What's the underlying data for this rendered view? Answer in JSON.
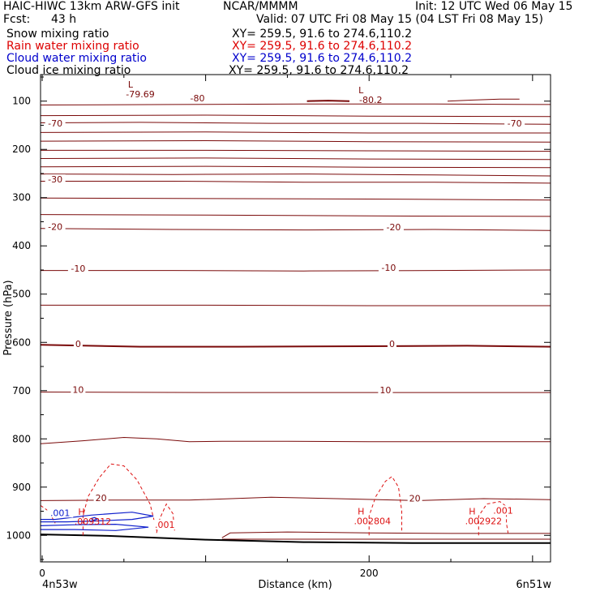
{
  "header": {
    "model": "HAIC-HIWC 13km ARW-GFS init",
    "center": "NCAR/MMMM",
    "init": "Init: 12 UTC Wed 06 May 15",
    "fcst_label": "Fcst:",
    "fcst_value": "43 h",
    "valid": "Valid: 07 UTC Fri 08 May 15 (04 LST Fri 08 May 15)",
    "fields": [
      {
        "name": "Snow mixing ratio",
        "xy": "XY= 259.5, 91.6 to 274.6,110.2",
        "color": "#000000"
      },
      {
        "name": "Rain water mixing ratio",
        "xy": "XY= 259.5, 91.6 to 274.6,110.2",
        "color": "#dd0000"
      },
      {
        "name": "Cloud water mixing ratio",
        "xy": "XY= 259.5, 91.6 to 274.6,110.2",
        "color": "#0000cc"
      },
      {
        "name": "Cloud ice mixing ratio",
        "xy": "XY= 259.5, 91.6 to 274.6,110.2",
        "color": "#000000"
      }
    ]
  },
  "chart_data": {
    "type": "cross-section contour",
    "ylabel": "Pressure (hPa)",
    "xlabel": "Distance (km)",
    "yticks": [
      100,
      200,
      300,
      400,
      500,
      600,
      700,
      800,
      900,
      1000
    ],
    "xticks": [
      0,
      200
    ],
    "xlim": [
      -1,
      311
    ],
    "ylim_top": 45,
    "ylim_bottom": 1055,
    "start_point": "4n53w",
    "end_point": "6n51w",
    "temperature_contours_C": [
      -80,
      -70,
      -30,
      -20,
      -10,
      0,
      10,
      20
    ],
    "temperature_contour_labels": [
      {
        "text": "-80",
        "x": 95,
        "p": 99
      },
      {
        "text": "-70",
        "x": 8,
        "p": 151
      },
      {
        "text": "-70",
        "x": 289,
        "p": 151
      },
      {
        "text": "-30",
        "x": 8,
        "p": 267
      },
      {
        "text": "-20",
        "x": 8,
        "p": 365
      },
      {
        "text": "-20",
        "x": 215,
        "p": 366
      },
      {
        "text": "-10",
        "x": 22,
        "p": 452
      },
      {
        "text": "-10",
        "x": 212,
        "p": 450
      },
      {
        "text": "0",
        "x": 22,
        "p": 608
      },
      {
        "text": "0",
        "x": 214,
        "p": 608
      },
      {
        "text": "10",
        "x": 22,
        "p": 703
      },
      {
        "text": "10",
        "x": 210,
        "p": 704
      },
      {
        "text": "20",
        "x": 36,
        "p": 927
      },
      {
        "text": "20",
        "x": 228,
        "p": 928
      }
    ],
    "extrema": [
      {
        "kind": "L",
        "value": "-79.69",
        "x": 60,
        "p": 87
      },
      {
        "kind": "L",
        "value": "-80.2",
        "x": 201,
        "p": 99
      },
      {
        "kind": "H",
        "value": ".009312",
        "x": 31,
        "p": 973
      },
      {
        "kind": "H",
        "value": ".002804",
        "x": 202,
        "p": 972
      },
      {
        "kind": "H",
        "value": ".002922",
        "x": 270,
        "p": 972
      }
    ],
    "rain_contour_labels": [
      {
        "text": ".001",
        "x": 75,
        "p": 983
      },
      {
        "text": ".001",
        "x": 282,
        "p": 953
      }
    ],
    "cloud_contour_labels": [
      {
        "text": ".001",
        "x": 11,
        "p": 958
      }
    ]
  }
}
